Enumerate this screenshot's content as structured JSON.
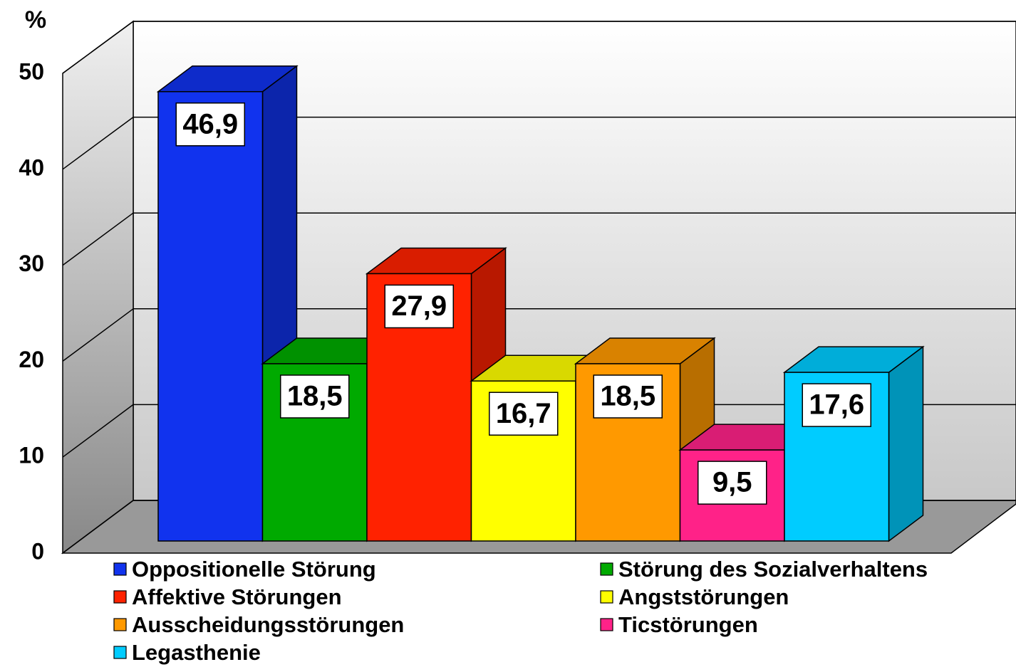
{
  "chart_data": {
    "type": "bar3d",
    "y_label": "%",
    "categories": [
      "Oppositionelle Störung",
      "Störung des Sozialverhaltens",
      "Affektive Störungen",
      "Angststörungen",
      "Ausscheidungsstörungen",
      "Ticstörungen",
      "Legasthenie"
    ],
    "values": [
      46.9,
      18.5,
      27.9,
      16.7,
      18.5,
      9.5,
      17.6
    ],
    "value_labels": [
      "46,9",
      "18,5",
      "27,9",
      "16,7",
      "18,5",
      "9,5",
      "17,6"
    ],
    "colors": [
      "#1133ee",
      "#00aa00",
      "#ff2200",
      "#ffff00",
      "#ff9900",
      "#ff2288",
      "#00ccff"
    ],
    "ylim": [
      0,
      50
    ],
    "yticks": [
      0,
      10,
      20,
      30,
      40,
      50
    ],
    "grid": true
  }
}
